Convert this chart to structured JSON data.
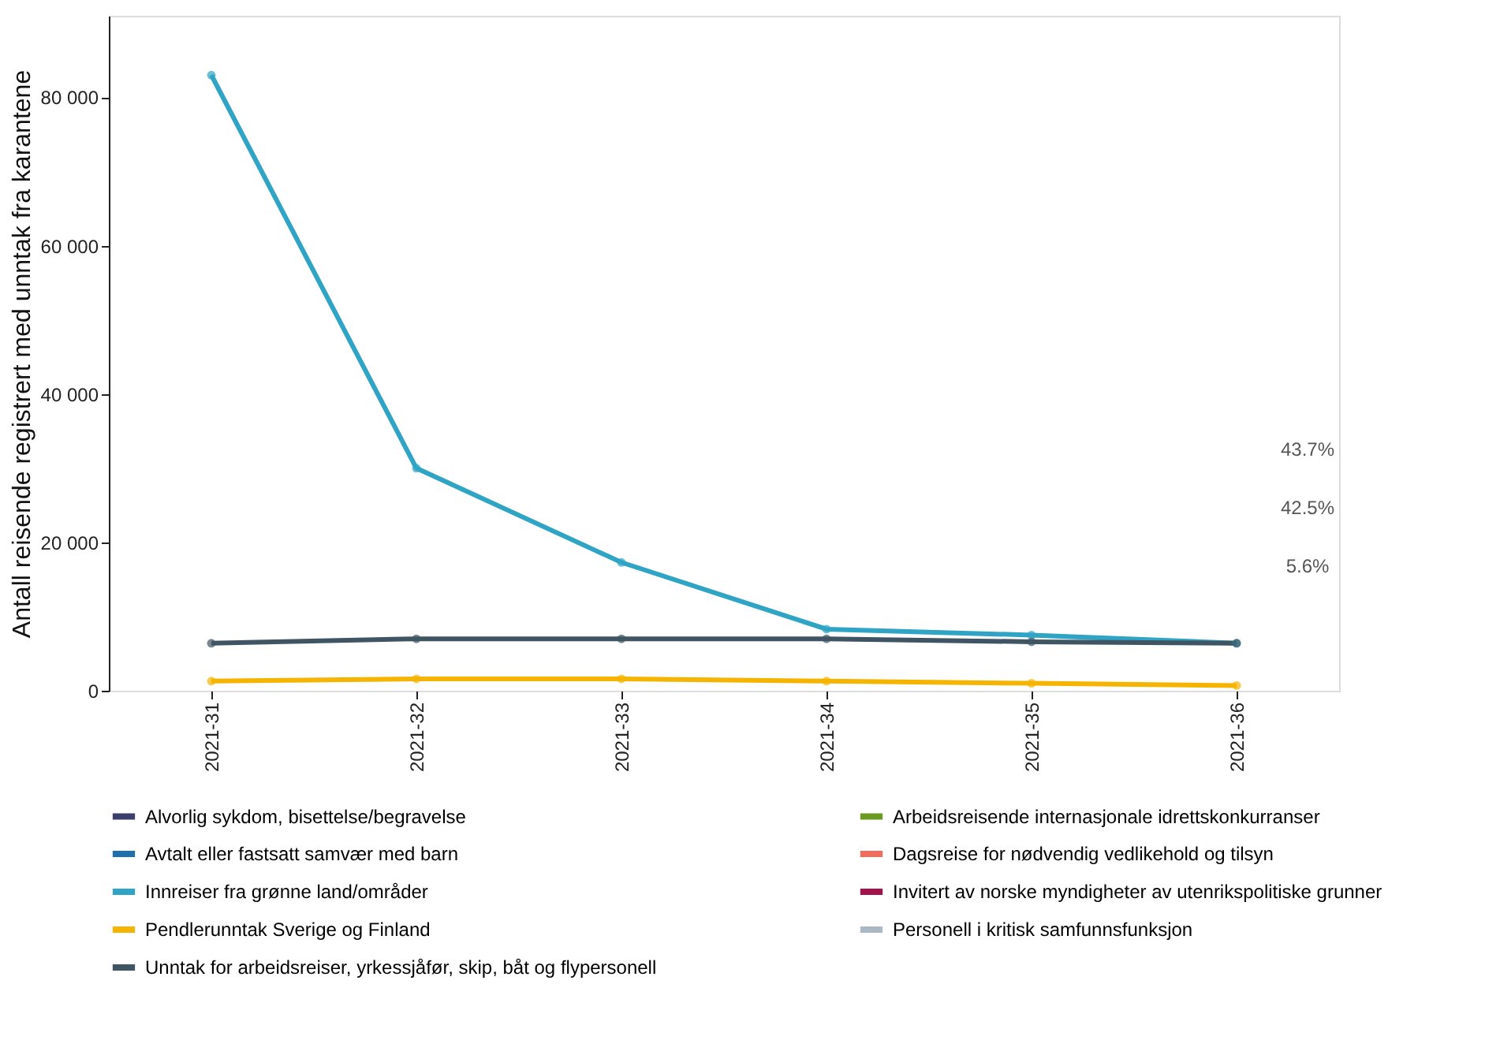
{
  "chart_data": {
    "type": "line",
    "ylabel": "Antall reisende registrert med unntak fra karantene",
    "categories": [
      "2021-31",
      "2021-32",
      "2021-33",
      "2021-34",
      "2021-35",
      "2021-36"
    ],
    "series": [
      {
        "name": "Alvorlig sykdom, bisettelse/begravelse",
        "color": "#3a3f6b",
        "values": [
          null,
          null,
          null,
          null,
          null,
          null
        ]
      },
      {
        "name": "Arbeidsreisende internasjonale idrettskonkurranser",
        "color": "#6a9a1f",
        "values": [
          null,
          null,
          null,
          null,
          null,
          null
        ]
      },
      {
        "name": "Avtalt eller fastsatt samvær med barn",
        "color": "#1f6fad",
        "values": [
          null,
          null,
          null,
          null,
          null,
          null
        ]
      },
      {
        "name": "Dagsreise for nødvendig vedlikehold og tilsyn",
        "color": "#f26c5c",
        "values": [
          null,
          null,
          null,
          null,
          null,
          null
        ]
      },
      {
        "name": "Innreiser fra grønne land/områder",
        "color": "#2fa4c4",
        "values": [
          83000,
          30000,
          17300,
          8300,
          7500,
          6400
        ]
      },
      {
        "name": "Invitert av norske myndigheter av utenrikspolitiske grunner",
        "color": "#a3124a",
        "values": [
          null,
          null,
          null,
          null,
          null,
          null
        ]
      },
      {
        "name": "Pendlerunntak Sverige og Finland",
        "color": "#f5b400",
        "values": [
          1300,
          1600,
          1600,
          1300,
          1000,
          700
        ]
      },
      {
        "name": "Personell i kritisk samfunnsfunksjon",
        "color": "#a9b8c2",
        "values": [
          null,
          null,
          null,
          null,
          null,
          null
        ]
      },
      {
        "name": "Unntak for arbeidsreiser, yrkessjåfør, skip, båt og flypersonell",
        "color": "#3f5564",
        "values": [
          6400,
          7000,
          7000,
          7000,
          6600,
          6400
        ]
      }
    ],
    "ylim": [
      0,
      91000
    ],
    "yticks": [
      {
        "value": 0,
        "label": "0"
      },
      {
        "value": 20000,
        "label": "20 000"
      },
      {
        "value": 40000,
        "label": "40 000"
      },
      {
        "value": 60000,
        "label": "60 000"
      },
      {
        "value": 80000,
        "label": "80 000"
      }
    ],
    "annotations": [
      "43.7%",
      "42.5%",
      "5.6%"
    ],
    "grid": false,
    "legend": "bottom",
    "marker": "circle",
    "line_style": "solid"
  }
}
